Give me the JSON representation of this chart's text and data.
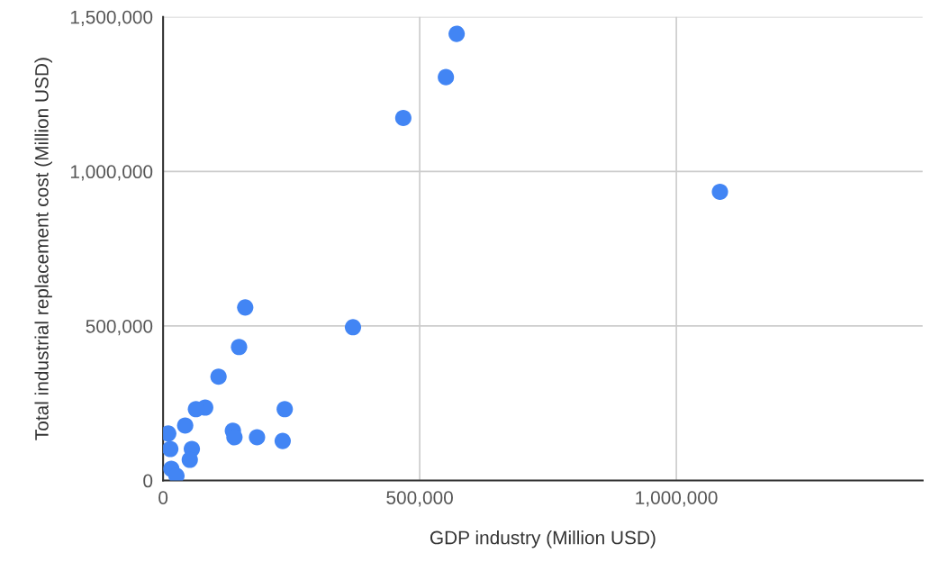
{
  "chart_data": {
    "type": "scatter",
    "xlabel": "GDP industry (Million USD)",
    "ylabel": "Total industrial replacement cost (Million USD)",
    "xlim": [
      0,
      1480000
    ],
    "xticks": [
      {
        "value": 0,
        "label": "0"
      },
      {
        "value": 500000,
        "label": "500,000"
      },
      {
        "value": 1000000,
        "label": "1,000,000"
      }
    ],
    "ylim": [
      0,
      1500000
    ],
    "yticks": [
      {
        "value": 0,
        "label": "0"
      },
      {
        "value": 500000,
        "label": "500,000"
      },
      {
        "value": 1000000,
        "label": "1,000,000"
      },
      {
        "value": 1500000,
        "label": "1,500,000"
      }
    ],
    "grid": true,
    "marker": "circle",
    "series": [
      {
        "color": "#4285f4",
        "x": [
          572000,
          551000,
          468000,
          1085000,
          370000,
          160000,
          148000,
          108000,
          82000,
          64000,
          43000,
          237000,
          136000,
          139000,
          183000,
          233000,
          10000,
          14000,
          56000,
          52000,
          16000,
          26000
        ],
        "values": [
          1445000,
          1305000,
          1173000,
          934000,
          496000,
          560000,
          432000,
          336000,
          236000,
          231000,
          178000,
          231000,
          161000,
          140000,
          140000,
          128000,
          152000,
          102000,
          102000,
          67000,
          38000,
          15000
        ]
      }
    ]
  }
}
